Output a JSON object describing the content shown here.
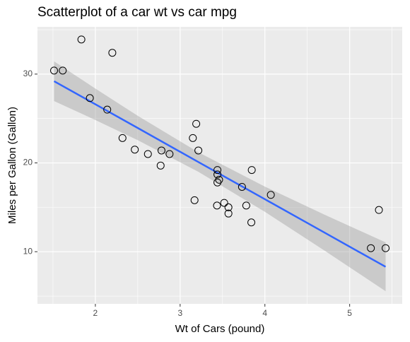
{
  "chart_data": {
    "type": "scatter",
    "title": "Scatterplot of a car wt vs car mpg",
    "xlabel": "Wt of Cars (pound)",
    "ylabel": "Miles per Gallon (Gallon)",
    "x": [
      2.62,
      2.875,
      2.32,
      3.215,
      3.44,
      3.46,
      3.57,
      3.19,
      3.15,
      3.44,
      3.44,
      4.07,
      3.73,
      3.78,
      5.25,
      5.424,
      5.345,
      2.2,
      1.615,
      1.835,
      2.465,
      3.52,
      3.435,
      3.84,
      3.845,
      1.935,
      2.14,
      1.513,
      3.17,
      2.77,
      3.57,
      2.78
    ],
    "values": [
      21.0,
      21.0,
      22.8,
      21.4,
      18.7,
      18.1,
      14.3,
      24.4,
      22.8,
      19.2,
      17.8,
      16.4,
      17.3,
      15.2,
      10.4,
      10.4,
      14.7,
      32.4,
      30.4,
      33.9,
      21.5,
      15.5,
      15.2,
      13.3,
      19.2,
      27.3,
      26.0,
      30.4,
      15.8,
      19.7,
      15.0,
      21.4
    ],
    "point_color": "#000000",
    "fit": {
      "color": "#3366FF",
      "band_color": "#999999",
      "x": [
        1.513,
        2.0,
        2.5,
        3.217,
        4.0,
        4.7,
        5.424
      ],
      "y": [
        29.2,
        26.6,
        23.93,
        20.09,
        15.91,
        12.17,
        8.3
      ],
      "lower": [
        26.97,
        24.83,
        22.56,
        18.99,
        14.49,
        10.15,
        5.55
      ],
      "upper": [
        31.43,
        28.37,
        25.3,
        21.19,
        17.33,
        14.19,
        11.05
      ]
    },
    "xlim": [
      1.317,
      5.62
    ],
    "xticks": [
      2,
      3,
      4,
      5
    ],
    "minor_xticks": [
      1.5,
      2.5,
      3.5,
      4.5,
      5.5
    ],
    "ylim": [
      4.13,
      35.32
    ],
    "yticks": [
      10,
      20,
      30
    ],
    "minor_yticks": [
      5,
      15,
      25,
      35
    ],
    "grid": true
  }
}
